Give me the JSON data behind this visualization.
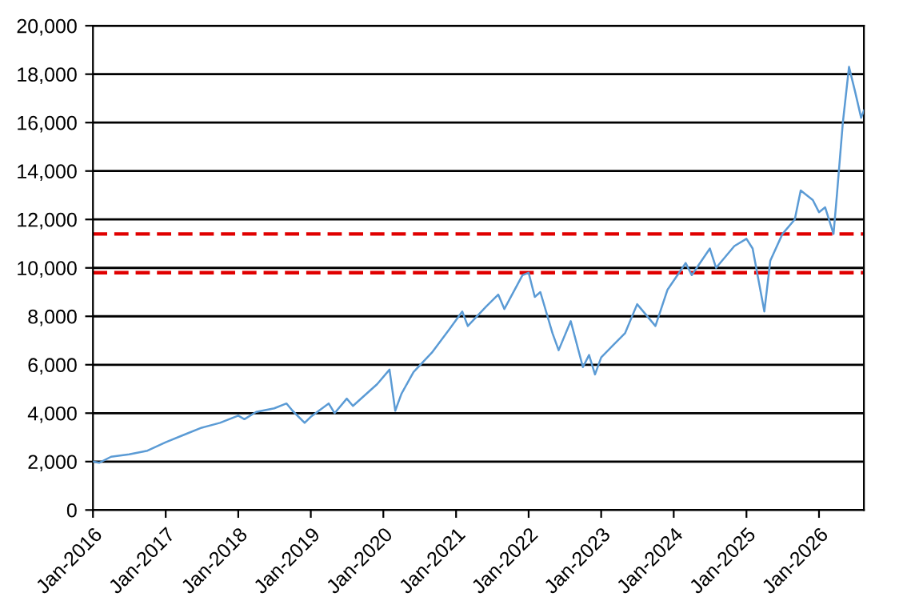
{
  "chart_data": {
    "type": "line",
    "x": [
      "2016-01",
      "2016-02",
      "2016-04",
      "2016-07",
      "2016-10",
      "2017-01",
      "2017-04",
      "2017-07",
      "2017-10",
      "2018-01",
      "2018-02",
      "2018-04",
      "2018-07",
      "2018-09",
      "2018-10",
      "2018-12",
      "2019-01",
      "2019-04",
      "2019-05",
      "2019-07",
      "2019-08",
      "2019-12",
      "2020-02",
      "2020-03",
      "2020-04",
      "2020-06",
      "2020-09",
      "2020-12",
      "2021-02",
      "2021-03",
      "2021-06",
      "2021-08",
      "2021-09",
      "2021-12",
      "2022-01",
      "2022-02",
      "2022-03",
      "2022-05",
      "2022-06",
      "2022-08",
      "2022-10",
      "2022-11",
      "2022-12",
      "2023-01",
      "2023-03",
      "2023-05",
      "2023-07",
      "2023-10",
      "2023-12",
      "2024-03",
      "2024-04",
      "2024-07",
      "2024-08",
      "2024-11",
      "2025-01",
      "2025-02",
      "2025-04",
      "2025-05",
      "2025-07",
      "2025-09",
      "2025-10",
      "2025-12",
      "2026-01",
      "2026-02",
      "2026-03-15",
      "2026-04",
      "2026-05",
      "2026-06",
      "2026-07",
      "2026-08",
      "2026-08-15"
    ],
    "series": [
      {
        "color": "#5b9bd5",
        "values": [
          2000,
          1950,
          2200,
          2300,
          2450,
          2800,
          3100,
          3400,
          3600,
          3900,
          3750,
          4050,
          4200,
          4400,
          4100,
          3600,
          3850,
          4400,
          4000,
          4600,
          4300,
          5200,
          5800,
          4100,
          4800,
          5700,
          6500,
          7500,
          8200,
          7600,
          8400,
          8900,
          8300,
          9700,
          9800,
          8800,
          9000,
          7300,
          6600,
          7800,
          5900,
          6400,
          5600,
          6300,
          6800,
          7300,
          8500,
          7600,
          9100,
          10200,
          9700,
          10800,
          10000,
          10900,
          11200,
          10800,
          8200,
          10300,
          11400,
          12000,
          13200,
          12800,
          12300,
          12500,
          11400,
          13000,
          16000,
          18300,
          17300,
          16200,
          16500
        ]
      }
    ],
    "xlim": [
      "2016-01",
      "2026-08-15"
    ],
    "xticks": [
      {
        "value": "2016-01",
        "label": "Jan-2016"
      },
      {
        "value": "2017-01",
        "label": "Jan-2017"
      },
      {
        "value": "2018-01",
        "label": "Jan-2018"
      },
      {
        "value": "2019-01",
        "label": "Jan-2019"
      },
      {
        "value": "2020-01",
        "label": "Jan-2020"
      },
      {
        "value": "2021-01",
        "label": "Jan-2021"
      },
      {
        "value": "2022-01",
        "label": "Jan-2022"
      },
      {
        "value": "2023-01",
        "label": "Jan-2023"
      },
      {
        "value": "2024-01",
        "label": "Jan-2024"
      },
      {
        "value": "2025-01",
        "label": "Jan-2025"
      },
      {
        "value": "2026-01",
        "label": "Jan-2026"
      }
    ],
    "ylim": [
      0,
      20000
    ],
    "yticks": [
      0,
      {
        "value": 2000,
        "label": "2,000"
      },
      {
        "value": 4000,
        "label": "4,000"
      },
      {
        "value": 6000,
        "label": "6,000"
      },
      {
        "value": 8000,
        "label": "8,000"
      },
      {
        "value": 10000,
        "label": "10,000"
      },
      {
        "value": 12000,
        "label": "12,000"
      },
      {
        "value": 14000,
        "label": "14,000"
      },
      {
        "value": 16000,
        "label": "16,000"
      },
      {
        "value": 18000,
        "label": "18,000"
      },
      {
        "value": 20000,
        "label": "20,000"
      }
    ],
    "grid": "y",
    "ref_lines": [
      {
        "axis": "y",
        "value": 11400,
        "color": "#e00000",
        "line_style": "dashed"
      },
      {
        "axis": "y",
        "value": 9800,
        "color": "#e00000",
        "line_style": "dashed"
      }
    ]
  }
}
